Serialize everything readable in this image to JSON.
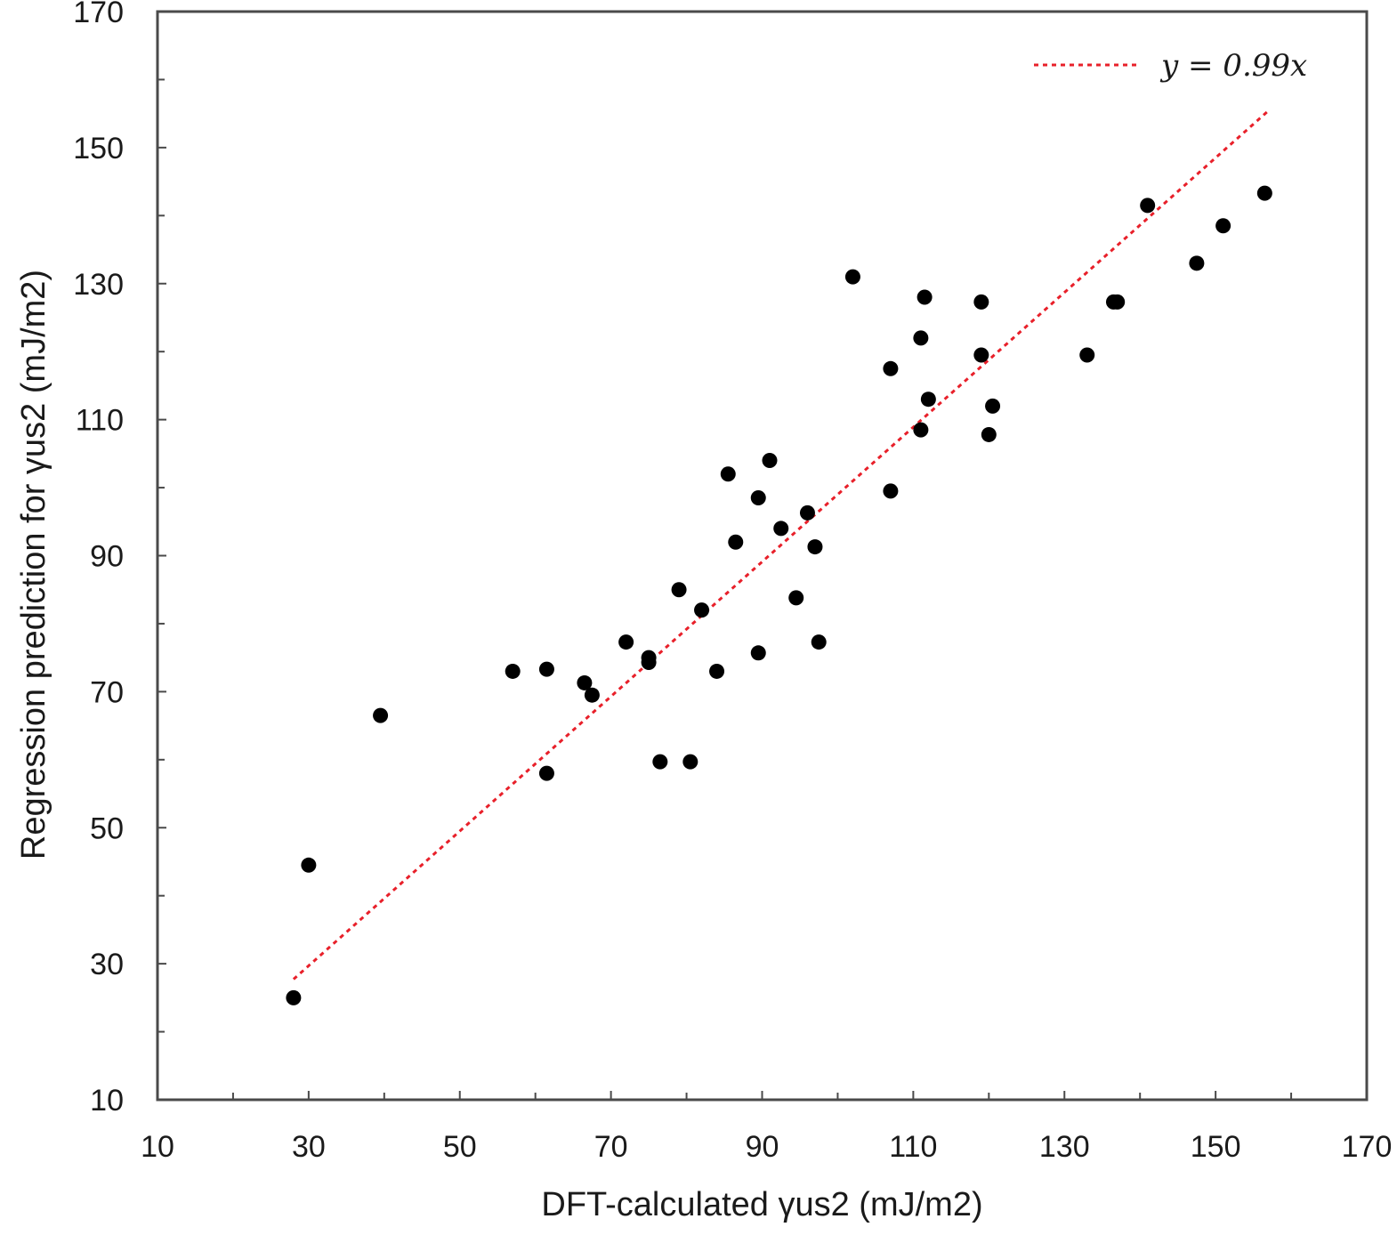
{
  "chart_data": {
    "type": "scatter",
    "xlabel": "DFT-calculated γus2 (mJ/m2)",
    "ylabel": "Regression prediction for γus2 (mJ/m2)",
    "xlim": [
      10,
      170
    ],
    "ylim": [
      10,
      170
    ],
    "x_ticks": [
      10,
      30,
      50,
      70,
      90,
      110,
      130,
      150,
      170
    ],
    "y_ticks": [
      10,
      30,
      50,
      70,
      90,
      110,
      130,
      150,
      170
    ],
    "x_minor_ticks": [
      20,
      40,
      60,
      80,
      100,
      120,
      140,
      160
    ],
    "y_minor_ticks": [
      20,
      40,
      60,
      80,
      100,
      120,
      140,
      160
    ],
    "grid": false,
    "legend_position": "top-right",
    "series": [
      {
        "name": "",
        "kind": "scatter",
        "color": "#000000",
        "points": [
          [
            28,
            25
          ],
          [
            30,
            44.5
          ],
          [
            39.5,
            66.5
          ],
          [
            57,
            73
          ],
          [
            61.5,
            73.3
          ],
          [
            61.5,
            58
          ],
          [
            66.5,
            71.3
          ],
          [
            67.5,
            69.5
          ],
          [
            72,
            77.3
          ],
          [
            75,
            75
          ],
          [
            75,
            74.3
          ],
          [
            76.5,
            59.7
          ],
          [
            79,
            85
          ],
          [
            80.5,
            59.7
          ],
          [
            82,
            82
          ],
          [
            84,
            73
          ],
          [
            85.5,
            102
          ],
          [
            86.5,
            92
          ],
          [
            89.5,
            98.5
          ],
          [
            89.5,
            75.7
          ],
          [
            91,
            104
          ],
          [
            92.5,
            94
          ],
          [
            94.5,
            83.8
          ],
          [
            96,
            96.3
          ],
          [
            97,
            91.3
          ],
          [
            97.5,
            77.3
          ],
          [
            102,
            131
          ],
          [
            107,
            117.5
          ],
          [
            107,
            99.5
          ],
          [
            111,
            122
          ],
          [
            111,
            108.5
          ],
          [
            111.5,
            128
          ],
          [
            112,
            113
          ],
          [
            119,
            127.3
          ],
          [
            119,
            119.5
          ],
          [
            120,
            107.8
          ],
          [
            120.5,
            112
          ],
          [
            133,
            119.5
          ],
          [
            136.5,
            127.3
          ],
          [
            137,
            127.3
          ],
          [
            141,
            141.5
          ],
          [
            147.5,
            133
          ],
          [
            151,
            138.5
          ],
          [
            156.5,
            143.3
          ]
        ]
      },
      {
        "name": "y = 0.99x",
        "kind": "line",
        "style": "dotted",
        "color": "#e8202a",
        "x": [
          28,
          157
        ],
        "y": [
          27.72,
          155.43
        ]
      }
    ]
  }
}
